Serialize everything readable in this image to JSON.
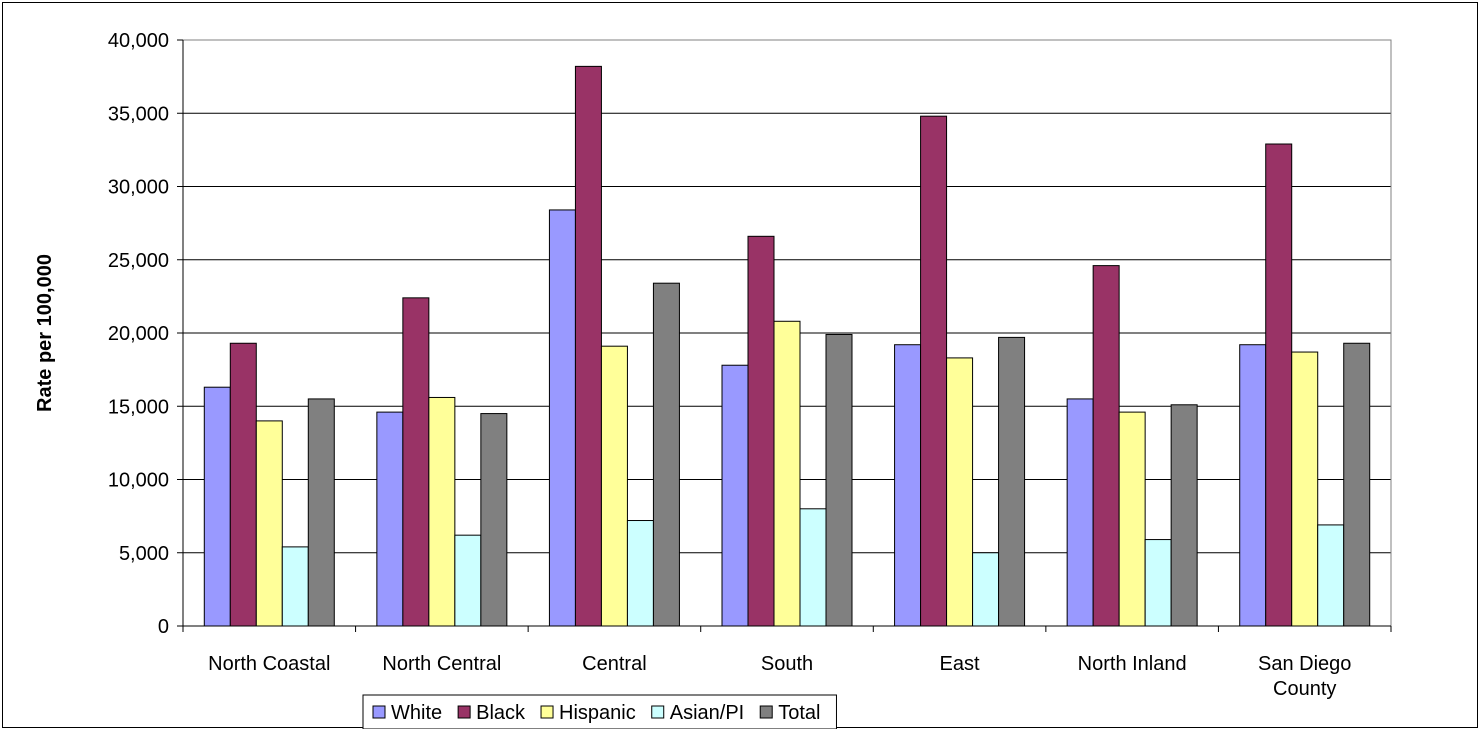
{
  "chart_data": {
    "type": "bar",
    "title": "",
    "xlabel": "",
    "ylabel": "Rate per 100,000",
    "ylim": [
      0,
      40000
    ],
    "yticks": [
      0,
      5000,
      10000,
      15000,
      20000,
      25000,
      30000,
      35000,
      40000
    ],
    "ytick_labels": [
      "0",
      "5,000",
      "10,000",
      "15,000",
      "20,000",
      "25,000",
      "30,000",
      "35,000",
      "40,000"
    ],
    "grid": true,
    "legend_position": "bottom",
    "categories": [
      [
        "North Coastal"
      ],
      [
        "North Central"
      ],
      [
        "Central"
      ],
      [
        "South"
      ],
      [
        "East"
      ],
      [
        "North Inland"
      ],
      [
        "San Diego",
        "County"
      ]
    ],
    "series": [
      {
        "name": "White",
        "color": "#9999FF",
        "values": [
          16300,
          14600,
          28400,
          17800,
          19200,
          15500,
          19200
        ]
      },
      {
        "name": "Black",
        "color": "#993366",
        "values": [
          19300,
          22400,
          38200,
          26600,
          34800,
          24600,
          32900
        ]
      },
      {
        "name": "Hispanic",
        "color": "#FFFF99",
        "values": [
          14000,
          15600,
          19100,
          20800,
          18300,
          14600,
          18700
        ]
      },
      {
        "name": "Asian/PI",
        "color": "#CCFFFF",
        "values": [
          5400,
          6200,
          7200,
          8000,
          5000,
          5900,
          6900
        ]
      },
      {
        "name": "Total",
        "color": "#808080",
        "values": [
          15500,
          14500,
          23400,
          19900,
          19700,
          15100,
          19300
        ]
      }
    ]
  }
}
